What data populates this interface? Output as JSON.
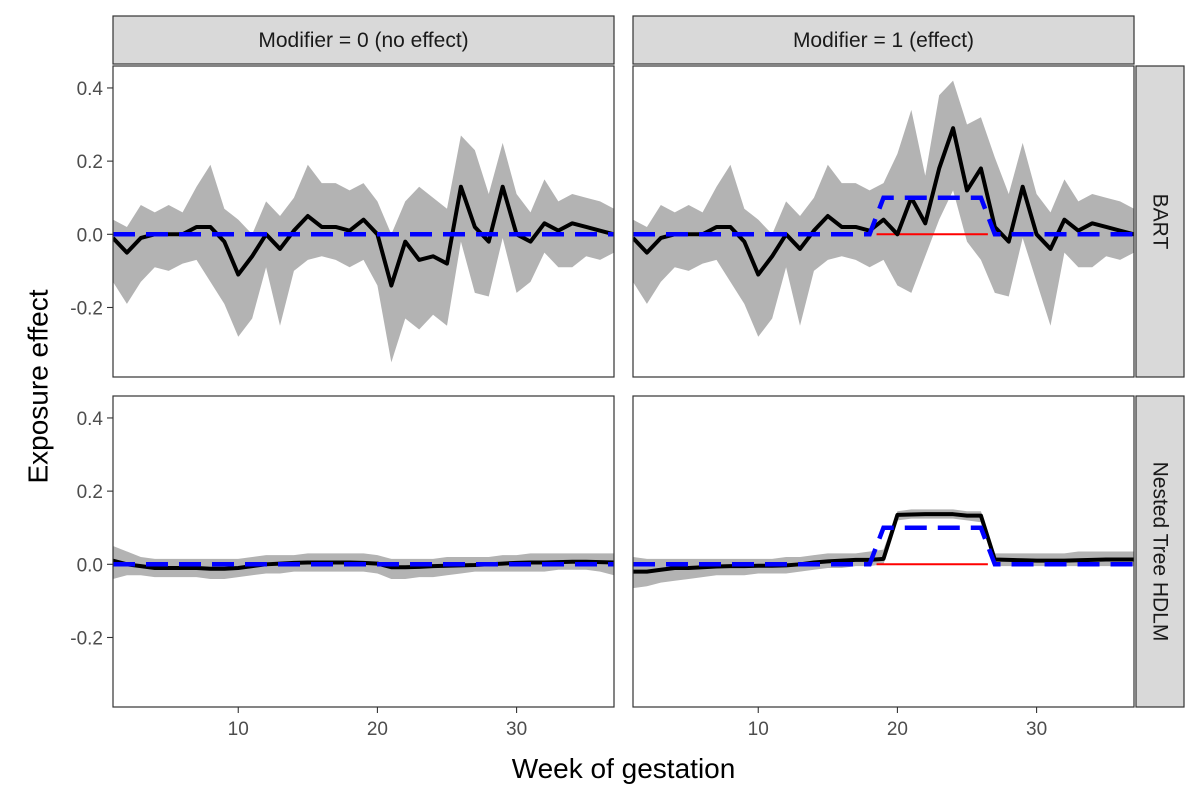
{
  "chart_data": {
    "type": "line",
    "facets": {
      "columns": [
        "Modifier = 0 (no effect)",
        "Modifier = 1 (effect)"
      ],
      "rows": [
        "BART",
        "Nested Tree HDLM"
      ]
    },
    "xlabel": "Week of gestation",
    "ylabel": "Exposure effect",
    "xlim": [
      1,
      37
    ],
    "ylim": [
      -0.39,
      0.46
    ],
    "xticks": [
      10,
      20,
      30
    ],
    "xtick_labels": [
      "10",
      "20",
      "30"
    ],
    "yticks": [
      0.4,
      0.2,
      0.0,
      -0.2
    ],
    "ytick_labels": [
      "0.4",
      "0.2",
      "0.0",
      "-0.2"
    ],
    "grid": false,
    "legend": "none",
    "colors": {
      "estimate": "#000000",
      "truth": "#0000ff",
      "zero_line": "#ff0000",
      "band": "#b3b3b3"
    },
    "x": [
      1,
      2,
      3,
      4,
      5,
      6,
      7,
      8,
      9,
      10,
      11,
      12,
      13,
      14,
      15,
      16,
      17,
      18,
      19,
      20,
      21,
      22,
      23,
      24,
      25,
      26,
      27,
      28,
      29,
      30,
      31,
      32,
      33,
      34,
      35,
      36,
      37
    ],
    "truth": {
      "no_effect": [
        0,
        0,
        0,
        0,
        0,
        0,
        0,
        0,
        0,
        0,
        0,
        0,
        0,
        0,
        0,
        0,
        0,
        0,
        0,
        0,
        0,
        0,
        0,
        0,
        0,
        0,
        0,
        0,
        0,
        0,
        0,
        0,
        0,
        0,
        0,
        0,
        0
      ],
      "effect": [
        0,
        0,
        0,
        0,
        0,
        0,
        0,
        0,
        0,
        0,
        0,
        0,
        0,
        0,
        0,
        0,
        0,
        0,
        0.1,
        0.1,
        0.1,
        0.1,
        0.1,
        0.1,
        0.1,
        0.1,
        0,
        0,
        0,
        0,
        0,
        0,
        0,
        0,
        0,
        0,
        0
      ]
    },
    "panels": [
      {
        "column": "Modifier = 0 (no effect)",
        "row": "BART",
        "truth_key": "no_effect",
        "estimate": [
          -0.01,
          -0.05,
          -0.01,
          0.0,
          0.0,
          0.0,
          0.02,
          0.02,
          -0.02,
          -0.11,
          -0.06,
          0.0,
          -0.04,
          0.01,
          0.05,
          0.02,
          0.02,
          0.01,
          0.04,
          0.0,
          -0.14,
          -0.02,
          -0.07,
          -0.06,
          -0.08,
          0.13,
          0.02,
          -0.02,
          0.13,
          0.0,
          -0.02,
          0.03,
          0.01,
          0.03,
          0.02,
          0.01,
          0.0
        ],
        "lower": [
          -0.13,
          -0.19,
          -0.13,
          -0.09,
          -0.1,
          -0.08,
          -0.07,
          -0.13,
          -0.19,
          -0.28,
          -0.23,
          -0.09,
          -0.25,
          -0.1,
          -0.07,
          -0.06,
          -0.07,
          -0.09,
          -0.07,
          -0.14,
          -0.35,
          -0.23,
          -0.26,
          -0.22,
          -0.25,
          -0.02,
          -0.16,
          -0.17,
          -0.01,
          -0.16,
          -0.13,
          -0.05,
          -0.09,
          -0.09,
          -0.06,
          -0.07,
          -0.05
        ],
        "upper": [
          0.04,
          0.02,
          0.08,
          0.06,
          0.08,
          0.06,
          0.13,
          0.19,
          0.07,
          0.04,
          0.0,
          0.09,
          0.05,
          0.1,
          0.19,
          0.14,
          0.14,
          0.12,
          0.14,
          0.09,
          0.0,
          0.09,
          0.13,
          0.1,
          0.07,
          0.27,
          0.23,
          0.11,
          0.25,
          0.11,
          0.06,
          0.15,
          0.09,
          0.11,
          0.1,
          0.09,
          0.07
        ]
      },
      {
        "column": "Modifier = 1 (effect)",
        "row": "BART",
        "truth_key": "effect",
        "estimate": [
          -0.01,
          -0.05,
          -0.01,
          0.0,
          0.0,
          0.0,
          0.02,
          0.02,
          -0.02,
          -0.11,
          -0.06,
          0.0,
          -0.04,
          0.01,
          0.05,
          0.02,
          0.02,
          0.01,
          0.04,
          0.0,
          0.1,
          0.03,
          0.18,
          0.29,
          0.12,
          0.18,
          0.02,
          -0.02,
          0.13,
          0.0,
          -0.04,
          0.04,
          0.01,
          0.03,
          0.02,
          0.01,
          0.0
        ],
        "lower": [
          -0.13,
          -0.19,
          -0.13,
          -0.09,
          -0.1,
          -0.08,
          -0.07,
          -0.13,
          -0.19,
          -0.28,
          -0.23,
          -0.09,
          -0.25,
          -0.1,
          -0.07,
          -0.06,
          -0.07,
          -0.09,
          -0.07,
          -0.14,
          -0.16,
          -0.06,
          0.04,
          0.12,
          -0.02,
          -0.07,
          -0.16,
          -0.17,
          -0.01,
          -0.13,
          -0.25,
          -0.05,
          -0.09,
          -0.09,
          -0.06,
          -0.07,
          -0.05
        ],
        "upper": [
          0.04,
          0.02,
          0.08,
          0.06,
          0.08,
          0.06,
          0.13,
          0.19,
          0.07,
          0.04,
          0.0,
          0.09,
          0.05,
          0.1,
          0.19,
          0.14,
          0.14,
          0.12,
          0.14,
          0.22,
          0.34,
          0.16,
          0.38,
          0.42,
          0.3,
          0.32,
          0.21,
          0.11,
          0.25,
          0.11,
          0.06,
          0.15,
          0.09,
          0.11,
          0.1,
          0.09,
          0.07
        ]
      },
      {
        "column": "Modifier = 0 (no effect)",
        "row": "Nested Tree HDLM",
        "truth_key": "no_effect",
        "estimate": [
          0.01,
          0.0,
          -0.005,
          -0.01,
          -0.01,
          -0.01,
          -0.01,
          -0.012,
          -0.012,
          -0.01,
          -0.005,
          0.0,
          0.002,
          0.004,
          0.005,
          0.005,
          0.005,
          0.005,
          0.004,
          0.002,
          -0.008,
          -0.008,
          -0.007,
          -0.005,
          -0.004,
          -0.003,
          -0.002,
          0.0,
          0.002,
          0.004,
          0.005,
          0.005,
          0.006,
          0.007,
          0.007,
          0.006,
          0.005
        ],
        "lower": [
          -0.04,
          -0.03,
          -0.03,
          -0.035,
          -0.035,
          -0.035,
          -0.035,
          -0.04,
          -0.04,
          -0.035,
          -0.03,
          -0.025,
          -0.025,
          -0.02,
          -0.02,
          -0.02,
          -0.02,
          -0.02,
          -0.02,
          -0.025,
          -0.04,
          -0.04,
          -0.035,
          -0.035,
          -0.03,
          -0.025,
          -0.02,
          -0.02,
          -0.02,
          -0.02,
          -0.02,
          -0.02,
          -0.015,
          -0.015,
          -0.015,
          -0.02,
          -0.03
        ],
        "upper": [
          0.05,
          0.035,
          0.02,
          0.015,
          0.015,
          0.015,
          0.015,
          0.015,
          0.015,
          0.015,
          0.02,
          0.025,
          0.025,
          0.025,
          0.03,
          0.03,
          0.03,
          0.03,
          0.03,
          0.025,
          0.015,
          0.015,
          0.015,
          0.015,
          0.02,
          0.02,
          0.02,
          0.02,
          0.025,
          0.025,
          0.03,
          0.03,
          0.03,
          0.03,
          0.03,
          0.03,
          0.03
        ]
      },
      {
        "column": "Modifier = 1 (effect)",
        "row": "Nested Tree HDLM",
        "truth_key": "effect",
        "estimate": [
          -0.02,
          -0.02,
          -0.015,
          -0.01,
          -0.01,
          -0.008,
          -0.006,
          -0.005,
          -0.005,
          -0.004,
          -0.004,
          -0.003,
          0.0,
          0.005,
          0.008,
          0.01,
          0.012,
          0.012,
          0.015,
          0.135,
          0.136,
          0.137,
          0.137,
          0.137,
          0.133,
          0.133,
          0.013,
          0.012,
          0.011,
          0.01,
          0.01,
          0.01,
          0.011,
          0.012,
          0.013,
          0.013,
          0.013
        ],
        "lower": [
          -0.065,
          -0.06,
          -0.05,
          -0.045,
          -0.04,
          -0.035,
          -0.03,
          -0.03,
          -0.03,
          -0.025,
          -0.025,
          -0.025,
          -0.02,
          -0.015,
          -0.01,
          -0.01,
          -0.005,
          -0.005,
          0.0,
          0.12,
          0.125,
          0.125,
          0.125,
          0.125,
          0.12,
          0.115,
          -0.005,
          -0.005,
          -0.005,
          -0.005,
          -0.005,
          -0.005,
          -0.005,
          -0.005,
          -0.005,
          -0.005,
          -0.005
        ],
        "upper": [
          0.02,
          0.015,
          0.015,
          0.015,
          0.015,
          0.015,
          0.015,
          0.015,
          0.015,
          0.015,
          0.015,
          0.02,
          0.02,
          0.025,
          0.03,
          0.03,
          0.03,
          0.035,
          0.04,
          0.145,
          0.15,
          0.15,
          0.15,
          0.15,
          0.145,
          0.145,
          0.03,
          0.03,
          0.03,
          0.03,
          0.03,
          0.03,
          0.035,
          0.035,
          0.035,
          0.035,
          0.035
        ]
      }
    ]
  }
}
